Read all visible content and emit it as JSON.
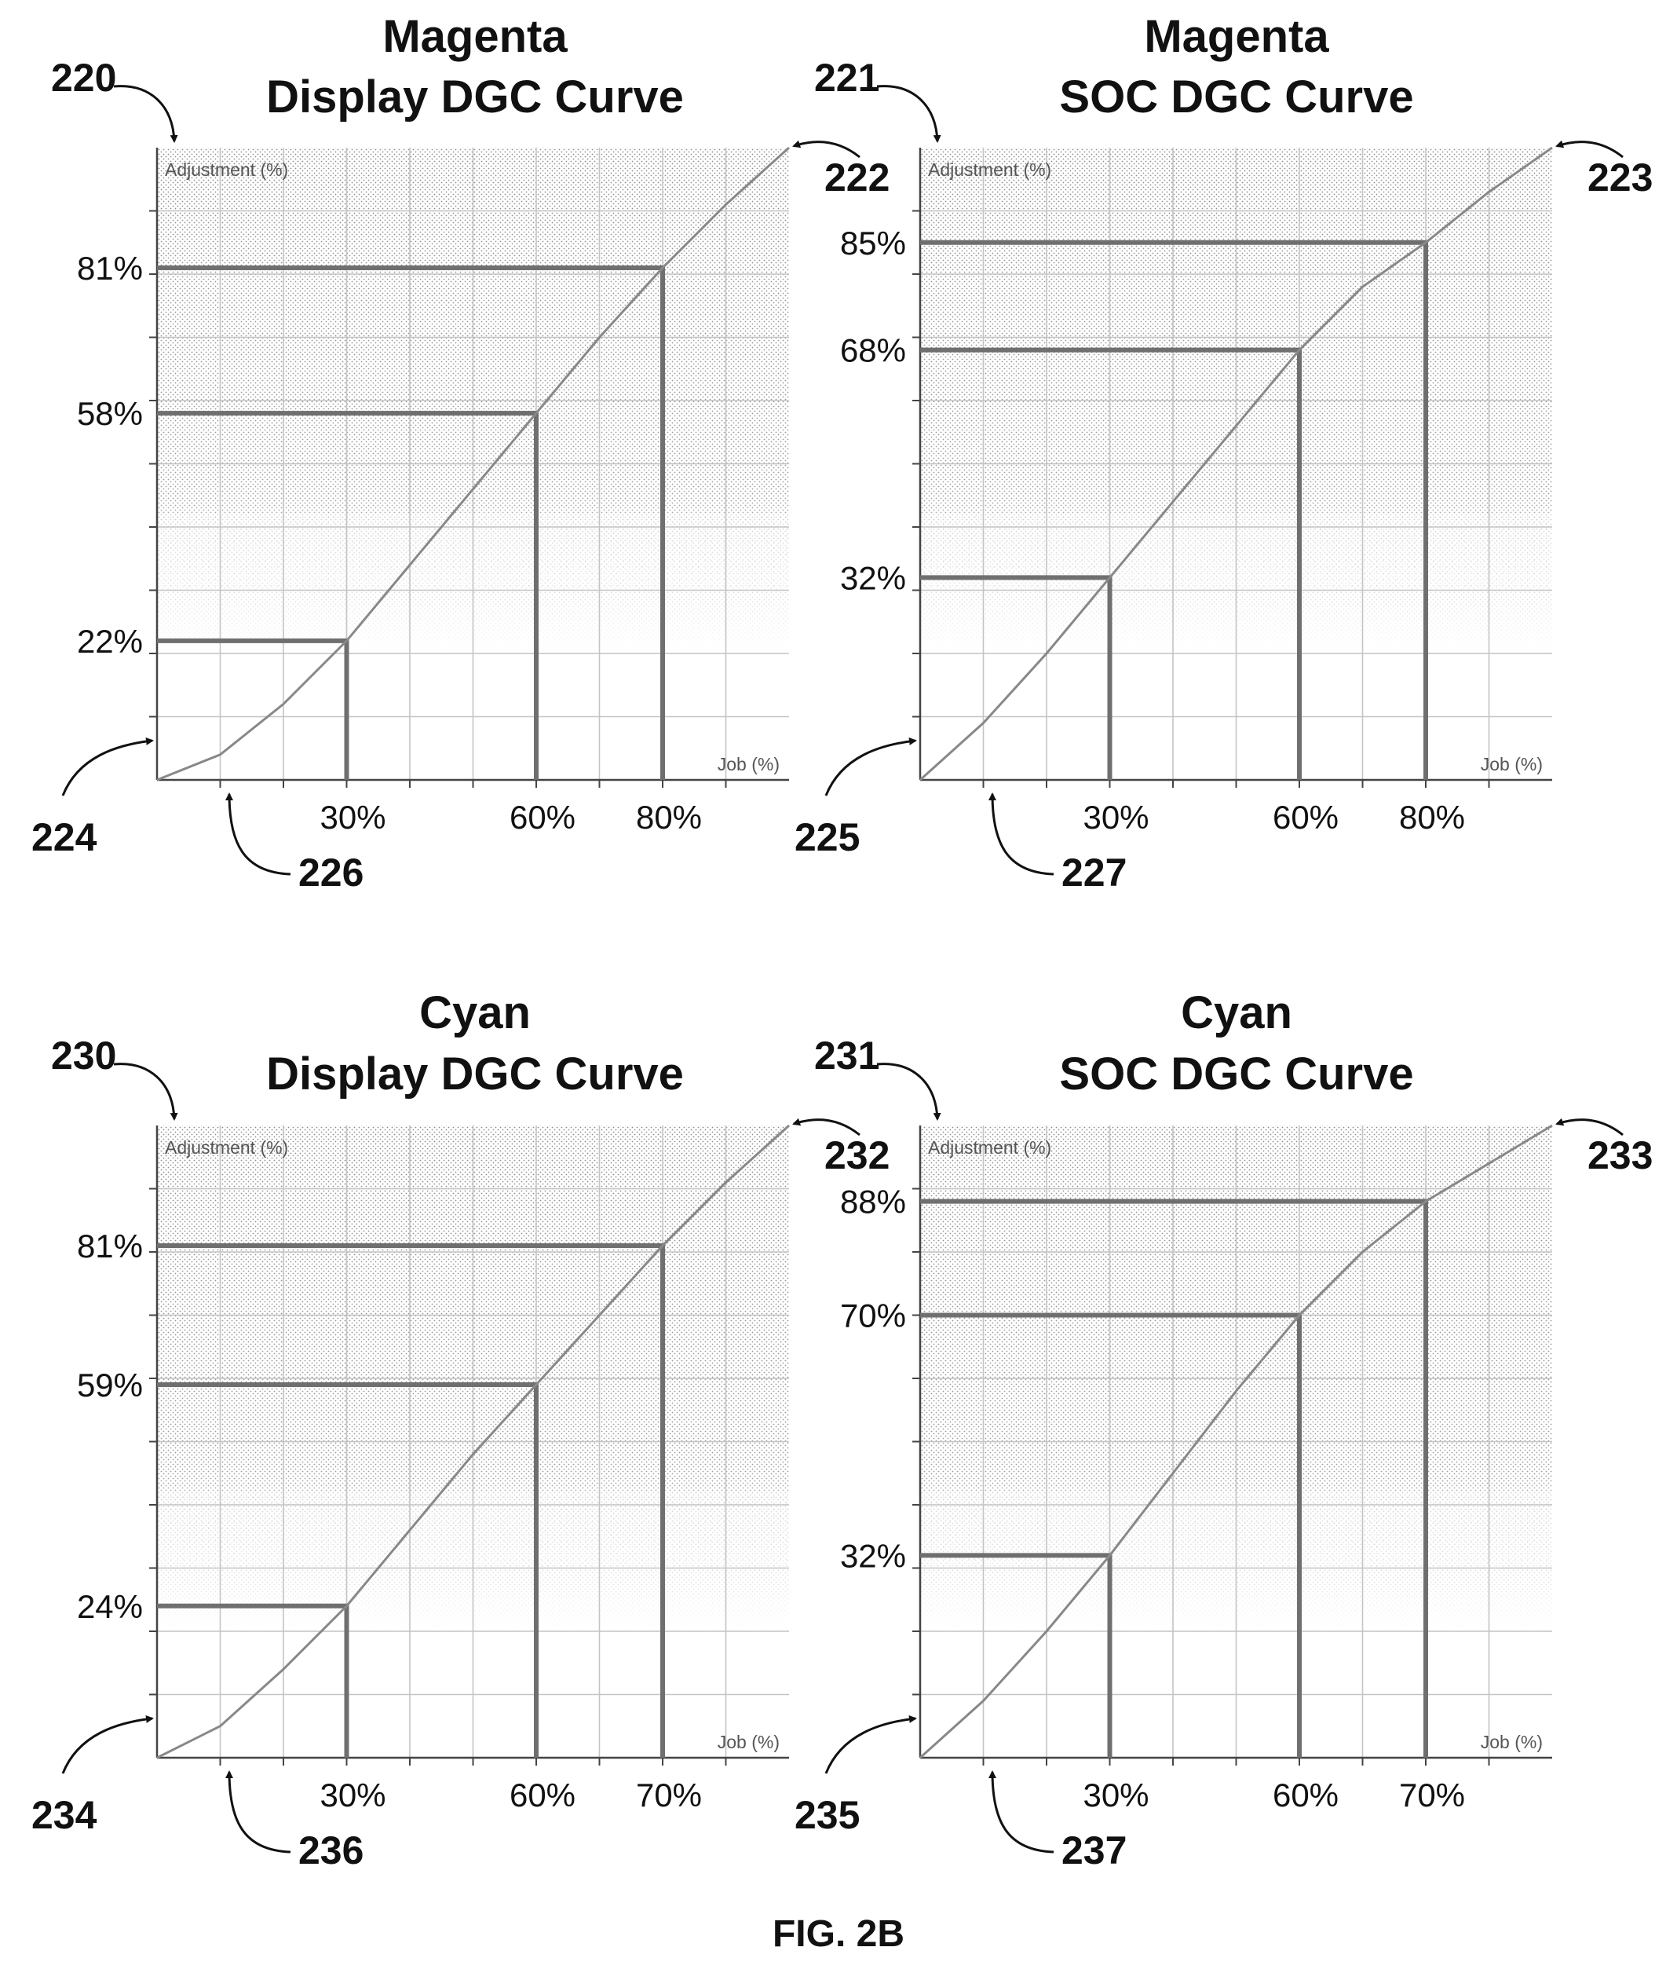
{
  "figure_label": "FIG. 2B",
  "chart_data": [
    {
      "type": "line",
      "title": [
        "Magenta",
        "Display DGC Curve"
      ],
      "xlabel": "Job (%)",
      "ylabel": "Adjustment (%)",
      "xlim": [
        0,
        100
      ],
      "ylim": [
        0,
        100
      ],
      "grid": true,
      "refs": {
        "chart": "220",
        "end": "222",
        "start": "224",
        "xaxis": "226"
      },
      "curve": {
        "x": [
          0,
          10,
          20,
          30,
          40,
          50,
          60,
          70,
          80,
          90,
          100
        ],
        "y": [
          0,
          4,
          12,
          22,
          34,
          46,
          58,
          70,
          81,
          91,
          100
        ]
      },
      "highlights": [
        {
          "x": 30,
          "y": 22,
          "x_label": "30%",
          "y_label": "22%"
        },
        {
          "x": 60,
          "y": 58,
          "x_label": "60%",
          "y_label": "58%"
        },
        {
          "x": 80,
          "y": 81,
          "x_label": "80%",
          "y_label": "81%"
        }
      ]
    },
    {
      "type": "line",
      "title": [
        "Magenta",
        "SOC DGC Curve"
      ],
      "xlabel": "Job (%)",
      "ylabel": "Adjustment (%)",
      "xlim": [
        0,
        100
      ],
      "ylim": [
        0,
        100
      ],
      "grid": true,
      "refs": {
        "chart": "221",
        "end": "223",
        "start": "225",
        "xaxis": "227"
      },
      "curve": {
        "x": [
          0,
          10,
          20,
          30,
          40,
          50,
          60,
          70,
          80,
          90,
          100
        ],
        "y": [
          0,
          9,
          20,
          32,
          44,
          56,
          68,
          78,
          85,
          93,
          100
        ]
      },
      "highlights": [
        {
          "x": 30,
          "y": 32,
          "x_label": "30%",
          "y_label": "32%"
        },
        {
          "x": 60,
          "y": 68,
          "x_label": "60%",
          "y_label": "68%"
        },
        {
          "x": 80,
          "y": 85,
          "x_label": "80%",
          "y_label": "85%"
        }
      ]
    },
    {
      "type": "line",
      "title": [
        "Cyan",
        "Display DGC Curve"
      ],
      "xlabel": "Job (%)",
      "ylabel": "Adjustment (%)",
      "xlim": [
        0,
        100
      ],
      "ylim": [
        0,
        100
      ],
      "grid": true,
      "refs": {
        "chart": "230",
        "end": "232",
        "start": "234",
        "xaxis": "236"
      },
      "curve": {
        "x": [
          0,
          10,
          20,
          30,
          40,
          50,
          60,
          70,
          80,
          90,
          100
        ],
        "y": [
          0,
          5,
          14,
          24,
          36,
          48,
          59,
          70,
          81,
          91,
          100
        ]
      },
      "highlights": [
        {
          "x": 30,
          "y": 24,
          "x_label": "30%",
          "y_label": "24%"
        },
        {
          "x": 60,
          "y": 59,
          "x_label": "60%",
          "y_label": "59%"
        },
        {
          "x": 80,
          "y": 81,
          "x_label": "70%",
          "y_label": "81%"
        }
      ]
    },
    {
      "type": "line",
      "title": [
        "Cyan",
        "SOC DGC Curve"
      ],
      "xlabel": "Job (%)",
      "ylabel": "Adjustment (%)",
      "xlim": [
        0,
        100
      ],
      "ylim": [
        0,
        100
      ],
      "grid": true,
      "refs": {
        "chart": "231",
        "end": "233",
        "start": "235",
        "xaxis": "237"
      },
      "curve": {
        "x": [
          0,
          10,
          20,
          30,
          40,
          50,
          60,
          70,
          80,
          90,
          100
        ],
        "y": [
          0,
          9,
          20,
          32,
          45,
          58,
          70,
          80,
          88,
          94,
          100
        ]
      },
      "highlights": [
        {
          "x": 30,
          "y": 32,
          "x_label": "30%",
          "y_label": "32%"
        },
        {
          "x": 60,
          "y": 70,
          "x_label": "60%",
          "y_label": "70%"
        },
        {
          "x": 80,
          "y": 88,
          "x_label": "70%",
          "y_label": "88%"
        }
      ]
    }
  ]
}
